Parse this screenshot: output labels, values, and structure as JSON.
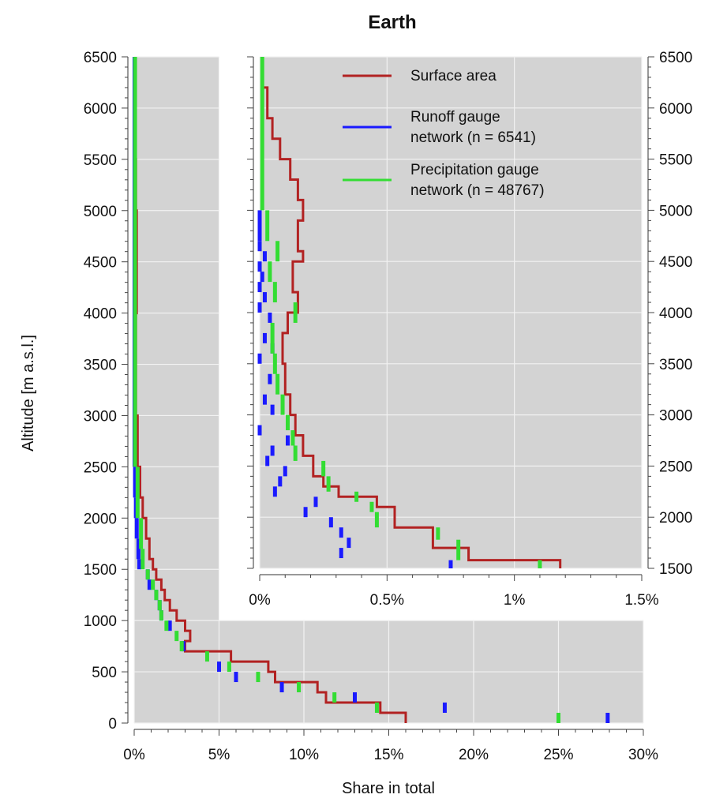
{
  "chart_data": [
    {
      "id": "main",
      "type": "line",
      "title": "Earth",
      "xlabel": "Share in total",
      "ylabel": "Altitude [m a.s.l.]",
      "xlim": [
        0,
        30
      ],
      "ylim": [
        0,
        6500
      ],
      "x_unit": "%",
      "x_ticks": [
        "0%",
        "5%",
        "10%",
        "15%",
        "20%",
        "25%",
        "30%"
      ],
      "y_ticks": [
        "0",
        "500",
        "1000",
        "1500",
        "2000",
        "2500",
        "3000",
        "3500",
        "4000",
        "4500",
        "5000",
        "5500",
        "6000",
        "6500"
      ],
      "grid": true,
      "series": [
        {
          "name": "Surface area",
          "color": "#b22222",
          "style": "step",
          "points": [
            [
              16.0,
              0
            ],
            [
              16.0,
              100
            ],
            [
              14.5,
              100
            ],
            [
              14.5,
              200
            ],
            [
              11.3,
              200
            ],
            [
              11.3,
              300
            ],
            [
              10.8,
              300
            ],
            [
              10.8,
              400
            ],
            [
              8.3,
              400
            ],
            [
              8.3,
              500
            ],
            [
              7.9,
              500
            ],
            [
              7.9,
              600
            ],
            [
              5.7,
              600
            ],
            [
              5.7,
              700
            ],
            [
              3.0,
              700
            ],
            [
              3.0,
              800
            ],
            [
              3.3,
              800
            ],
            [
              3.3,
              900
            ],
            [
              3.0,
              900
            ],
            [
              3.0,
              1000
            ],
            [
              2.5,
              1000
            ],
            [
              2.5,
              1100
            ],
            [
              2.1,
              1100
            ],
            [
              2.1,
              1200
            ],
            [
              1.8,
              1200
            ],
            [
              1.8,
              1300
            ],
            [
              1.6,
              1300
            ],
            [
              1.6,
              1400
            ],
            [
              1.3,
              1400
            ],
            [
              1.3,
              1500
            ],
            [
              1.1,
              1500
            ],
            [
              1.1,
              1600
            ],
            [
              0.9,
              1600
            ],
            [
              0.9,
              1800
            ],
            [
              0.7,
              1800
            ],
            [
              0.7,
              2000
            ],
            [
              0.5,
              2000
            ],
            [
              0.5,
              2200
            ],
            [
              0.35,
              2200
            ],
            [
              0.35,
              2500
            ],
            [
              0.2,
              2500
            ],
            [
              0.2,
              3000
            ],
            [
              0.1,
              3000
            ],
            [
              0.1,
              4000
            ],
            [
              0.15,
              4000
            ],
            [
              0.15,
              5000
            ],
            [
              0.1,
              5000
            ],
            [
              0.1,
              5500
            ],
            [
              0.02,
              5500
            ],
            [
              0.02,
              6500
            ]
          ]
        },
        {
          "name": "Runoff gauge network (n = 6541)",
          "color": "#1a1aff",
          "style": "segments",
          "segments": [
            [
              27.9,
              0,
              100
            ],
            [
              18.3,
              100,
              200
            ],
            [
              13.0,
              200,
              300
            ],
            [
              8.7,
              300,
              400
            ],
            [
              6.0,
              400,
              500
            ],
            [
              5.0,
              500,
              600
            ],
            [
              2.9,
              700,
              800
            ],
            [
              2.1,
              900,
              1000
            ],
            [
              1.6,
              1000,
              1100
            ],
            [
              1.5,
              1100,
              1200
            ],
            [
              1.3,
              1200,
              1300
            ],
            [
              0.9,
              1300,
              1400
            ],
            [
              0.8,
              1400,
              1500
            ],
            [
              0.3,
              1500,
              1600
            ],
            [
              0.25,
              1600,
              1800
            ],
            [
              0.15,
              1800,
              2000
            ],
            [
              0.1,
              2000,
              2200
            ],
            [
              0.05,
              2200,
              2500
            ],
            [
              0.02,
              2500,
              6500
            ]
          ]
        },
        {
          "name": "Precipitation gauge network (n = 48767)",
          "color": "#33dd33",
          "style": "segments",
          "segments": [
            [
              25.0,
              0,
              100
            ],
            [
              14.3,
              100,
              200
            ],
            [
              11.8,
              200,
              300
            ],
            [
              9.7,
              300,
              400
            ],
            [
              7.3,
              400,
              500
            ],
            [
              5.6,
              500,
              600
            ],
            [
              4.3,
              600,
              700
            ],
            [
              2.8,
              700,
              800
            ],
            [
              2.5,
              800,
              900
            ],
            [
              1.9,
              900,
              1000
            ],
            [
              1.6,
              1000,
              1100
            ],
            [
              1.5,
              1100,
              1200
            ],
            [
              1.3,
              1200,
              1300
            ],
            [
              1.1,
              1300,
              1400
            ],
            [
              0.8,
              1400,
              1500
            ],
            [
              0.5,
              1500,
              1700
            ],
            [
              0.4,
              1700,
              2000
            ],
            [
              0.2,
              2000,
              2500
            ],
            [
              0.05,
              2500,
              6500
            ]
          ]
        }
      ]
    },
    {
      "id": "inset",
      "type": "line",
      "xlim": [
        0,
        1.5
      ],
      "ylim": [
        1500,
        6500
      ],
      "x_unit": "%",
      "x_ticks": [
        "0%",
        "0.5%",
        "1%",
        "1.5%"
      ],
      "y_ticks": [
        "1500",
        "2000",
        "2500",
        "3000",
        "3500",
        "4000",
        "4500",
        "5000",
        "5500",
        "6000",
        "6500"
      ],
      "grid": true,
      "legend_position": "top-right",
      "series": [
        {
          "name": "Surface area",
          "color": "#b22222",
          "style": "step",
          "points": [
            [
              1.18,
              1500
            ],
            [
              1.18,
              1580
            ],
            [
              0.82,
              1580
            ],
            [
              0.82,
              1700
            ],
            [
              0.68,
              1700
            ],
            [
              0.68,
              1900
            ],
            [
              0.53,
              1900
            ],
            [
              0.53,
              2100
            ],
            [
              0.46,
              2100
            ],
            [
              0.46,
              2200
            ],
            [
              0.31,
              2200
            ],
            [
              0.31,
              2300
            ],
            [
              0.25,
              2300
            ],
            [
              0.25,
              2400
            ],
            [
              0.21,
              2400
            ],
            [
              0.21,
              2500
            ],
            [
              0.21,
              2600
            ],
            [
              0.17,
              2600
            ],
            [
              0.17,
              2800
            ],
            [
              0.14,
              2800
            ],
            [
              0.14,
              3000
            ],
            [
              0.12,
              3000
            ],
            [
              0.12,
              3200
            ],
            [
              0.1,
              3200
            ],
            [
              0.1,
              3500
            ],
            [
              0.09,
              3500
            ],
            [
              0.09,
              3800
            ],
            [
              0.11,
              3800
            ],
            [
              0.11,
              4000
            ],
            [
              0.15,
              4000
            ],
            [
              0.15,
              4200
            ],
            [
              0.13,
              4200
            ],
            [
              0.13,
              4500
            ],
            [
              0.17,
              4500
            ],
            [
              0.17,
              4600
            ],
            [
              0.15,
              4600
            ],
            [
              0.15,
              4900
            ],
            [
              0.17,
              4900
            ],
            [
              0.17,
              5100
            ],
            [
              0.15,
              5100
            ],
            [
              0.15,
              5300
            ],
            [
              0.12,
              5300
            ],
            [
              0.12,
              5500
            ],
            [
              0.08,
              5500
            ],
            [
              0.08,
              5700
            ],
            [
              0.05,
              5700
            ],
            [
              0.05,
              5900
            ],
            [
              0.03,
              5900
            ],
            [
              0.03,
              6200
            ],
            [
              0.01,
              6200
            ],
            [
              0.01,
              6500
            ]
          ]
        },
        {
          "name": "Runoff gauge network (n = 6541)",
          "color": "#1a1aff",
          "style": "segments",
          "segments": [
            [
              0.75,
              1500,
              1580
            ],
            [
              0.32,
              1600,
              1700
            ],
            [
              0.35,
              1700,
              1800
            ],
            [
              0.32,
              1800,
              1900
            ],
            [
              0.28,
              1900,
              2000
            ],
            [
              0.18,
              2000,
              2100
            ],
            [
              0.22,
              2100,
              2200
            ],
            [
              0.06,
              2200,
              2300
            ],
            [
              0.08,
              2300,
              2400
            ],
            [
              0.1,
              2400,
              2500
            ],
            [
              0.03,
              2500,
              2600
            ],
            [
              0.05,
              2600,
              2700
            ],
            [
              0.11,
              2700,
              2800
            ],
            [
              0.0,
              2800,
              2900
            ],
            [
              0.05,
              3000,
              3100
            ],
            [
              0.02,
              3100,
              3200
            ],
            [
              0.04,
              3300,
              3400
            ],
            [
              0.0,
              3500,
              3600
            ],
            [
              0.05,
              3600,
              3700
            ],
            [
              0.02,
              3700,
              3800
            ],
            [
              0.04,
              3900,
              4000
            ],
            [
              0.0,
              4000,
              4100
            ],
            [
              0.02,
              4100,
              4200
            ],
            [
              0.0,
              4200,
              4300
            ],
            [
              0.01,
              4300,
              4400
            ],
            [
              0.0,
              4400,
              4500
            ],
            [
              0.02,
              4500,
              4600
            ],
            [
              0.0,
              4600,
              4700
            ],
            [
              0.0,
              4700,
              5000
            ]
          ]
        },
        {
          "name": "Precipitation gauge network (n = 48767)",
          "color": "#33dd33",
          "style": "segments",
          "segments": [
            [
              1.1,
              1500,
              1580
            ],
            [
              0.78,
              1580,
              1780
            ],
            [
              0.7,
              1780,
              1900
            ],
            [
              0.46,
              1900,
              2050
            ],
            [
              0.44,
              2050,
              2150
            ],
            [
              0.38,
              2150,
              2250
            ],
            [
              0.27,
              2250,
              2400
            ],
            [
              0.25,
              2400,
              2550
            ],
            [
              0.14,
              2550,
              2700
            ],
            [
              0.13,
              2700,
              2850
            ],
            [
              0.11,
              2850,
              3000
            ],
            [
              0.09,
              3000,
              3200
            ],
            [
              0.07,
              3200,
              3400
            ],
            [
              0.06,
              3400,
              3600
            ],
            [
              0.05,
              3600,
              3900
            ],
            [
              0.14,
              3900,
              4100
            ],
            [
              0.06,
              4100,
              4300
            ],
            [
              0.04,
              4300,
              4500
            ],
            [
              0.07,
              4500,
              4700
            ],
            [
              0.03,
              4700,
              5000
            ],
            [
              0.01,
              5000,
              6500
            ]
          ]
        }
      ]
    }
  ]
}
